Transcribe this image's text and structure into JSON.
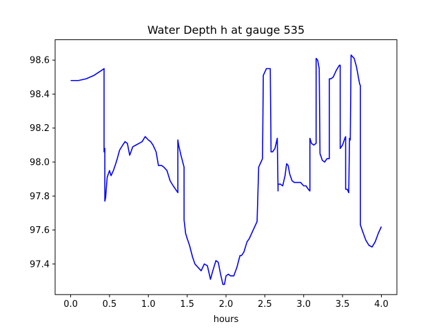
{
  "chart_data": {
    "type": "line",
    "title": "Water Depth h at gauge 535",
    "xlabel": "hours",
    "ylabel": "",
    "xlim": [
      -0.2,
      4.2
    ],
    "ylim": [
      97.22,
      98.72
    ],
    "xticks": [
      0.0,
      0.5,
      1.0,
      1.5,
      2.0,
      2.5,
      3.0,
      3.5,
      4.0
    ],
    "xtick_labels": [
      "0.0",
      "0.5",
      "1.0",
      "1.5",
      "2.0",
      "2.5",
      "3.0",
      "3.5",
      "4.0"
    ],
    "yticks": [
      97.4,
      97.6,
      97.8,
      98.0,
      98.2,
      98.4,
      98.6
    ],
    "ytick_labels": [
      "97.4",
      "97.6",
      "97.8",
      "98.0",
      "98.2",
      "98.4",
      "98.6"
    ],
    "grid": false,
    "series": [
      {
        "color": "#0000ff",
        "x": [
          0.0,
          0.1,
          0.2,
          0.3,
          0.4,
          0.43,
          0.43,
          0.44,
          0.44,
          0.45,
          0.47,
          0.5,
          0.52,
          0.55,
          0.58,
          0.6,
          0.63,
          0.67,
          0.7,
          0.73,
          0.76,
          0.8,
          0.84,
          0.88,
          0.92,
          0.96,
          1.0,
          1.03,
          1.06,
          1.1,
          1.13,
          1.17,
          1.2,
          1.24,
          1.28,
          1.32,
          1.35,
          1.38,
          1.38,
          1.39,
          1.42,
          1.46,
          1.46,
          1.48,
          1.5,
          1.53,
          1.57,
          1.6,
          1.64,
          1.68,
          1.72,
          1.76,
          1.8,
          1.83,
          1.87,
          1.9,
          1.93,
          1.96,
          1.98,
          2.0,
          2.03,
          2.06,
          2.1,
          2.14,
          2.18,
          2.2,
          2.23,
          2.27,
          2.3,
          2.35,
          2.4,
          2.42,
          2.42,
          2.45,
          2.47,
          2.47,
          2.48,
          2.5,
          2.52,
          2.57,
          2.58,
          2.59,
          2.6,
          2.63,
          2.66,
          2.67,
          2.67,
          2.7,
          2.73,
          2.76,
          2.78,
          2.8,
          2.82,
          2.85,
          2.88,
          2.92,
          2.96,
          3.0,
          3.03,
          3.06,
          3.08,
          3.08,
          3.1,
          3.13,
          3.16,
          3.16,
          3.18,
          3.2,
          3.21,
          3.24,
          3.27,
          3.3,
          3.33,
          3.33,
          3.35,
          3.38,
          3.42,
          3.46,
          3.47,
          3.47,
          3.5,
          3.53,
          3.54,
          3.54,
          3.56,
          3.58,
          3.59,
          3.6,
          3.61,
          3.65,
          3.68,
          3.72,
          3.73,
          3.73,
          3.76,
          3.8,
          3.84,
          3.88,
          3.92,
          3.96,
          4.0
        ],
        "y": [
          98.48,
          98.48,
          98.49,
          98.51,
          98.54,
          98.55,
          98.06,
          98.08,
          97.77,
          97.79,
          97.91,
          97.95,
          97.92,
          97.95,
          97.99,
          98.02,
          98.07,
          98.1,
          98.12,
          98.11,
          98.04,
          98.09,
          98.1,
          98.11,
          98.12,
          98.15,
          98.13,
          98.12,
          98.1,
          98.06,
          97.98,
          97.98,
          97.97,
          97.95,
          97.89,
          97.86,
          97.84,
          97.82,
          98.13,
          98.1,
          98.04,
          97.97,
          97.66,
          97.58,
          97.55,
          97.51,
          97.44,
          97.4,
          97.38,
          97.36,
          97.4,
          97.39,
          97.31,
          97.36,
          97.42,
          97.41,
          97.34,
          97.28,
          97.28,
          97.33,
          97.34,
          97.33,
          97.33,
          97.38,
          97.45,
          97.45,
          97.47,
          97.53,
          97.55,
          97.6,
          97.65,
          97.96,
          97.97,
          98.0,
          98.02,
          98.02,
          98.51,
          98.53,
          98.55,
          98.55,
          98.06,
          98.06,
          98.06,
          98.08,
          98.14,
          97.83,
          97.87,
          97.87,
          97.86,
          97.92,
          97.99,
          97.98,
          97.93,
          97.89,
          97.88,
          97.88,
          97.88,
          97.86,
          97.86,
          97.84,
          97.83,
          98.14,
          98.11,
          98.1,
          98.11,
          98.61,
          98.6,
          98.55,
          98.05,
          98.01,
          98.0,
          98.02,
          98.02,
          98.49,
          98.49,
          98.5,
          98.54,
          98.57,
          98.57,
          98.08,
          98.1,
          98.14,
          98.15,
          97.84,
          97.84,
          97.82,
          98.14,
          98.13,
          98.63,
          98.61,
          98.56,
          98.46,
          98.45,
          97.63,
          97.59,
          97.54,
          97.51,
          97.5,
          97.53,
          97.58,
          97.62
        ]
      }
    ]
  }
}
